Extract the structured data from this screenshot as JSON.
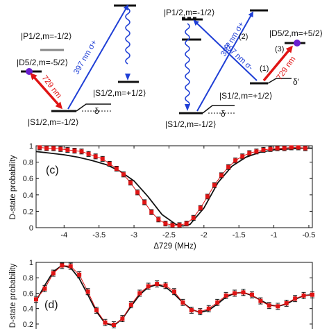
{
  "levels": {
    "p_left": "|P1/2,m=-1/2⟩",
    "d_left": "|D5/2,m=-5/2⟩",
    "s_left_bottom": "|S1/2,m=-1/2⟩",
    "s_left_right": "|S1/2,m=+1/2⟩",
    "p_right": "|P1/2,m=-1/2⟩",
    "d_right": "|D5/2,m=+5/2⟩",
    "s_right_mid": "|S1/2,m=+1/2⟩",
    "s_right_bottom": "|S1/2,m=-1/2⟩"
  },
  "transitions": {
    "uv_left": "397 nm σ+",
    "ir_left": "729 nm",
    "uv_right_1": "397 nm σ+",
    "uv_right_2": "397 nm σ-",
    "ir_right": "729 nm",
    "step1": "(1)",
    "step2": "(2)",
    "step3": "(3)",
    "delta": "δ",
    "delta_prime": "δ'"
  },
  "colors": {
    "uv": "#1f3fd6",
    "ir": "#e01414",
    "marker": "#e01414",
    "dot": "#6a1fd0"
  },
  "chart_data": [
    {
      "type": "scatter",
      "panel": "(c)",
      "title": "",
      "xlabel": "Δ729 (MHz)",
      "ylabel": "D-state probability",
      "xlim": [
        -4.4,
        -0.45
      ],
      "ylim": [
        0,
        1
      ],
      "xticks": [
        -4,
        -3.5,
        -3,
        -2.5,
        -2,
        -1.5,
        -1,
        -0.5
      ],
      "xtick_labels": [
        "-4",
        "-3.5",
        "-3",
        "-2.5",
        "-2",
        "-1.5",
        "-1",
        "-0.5"
      ],
      "yticks": [
        0,
        0.2,
        0.4,
        0.6,
        0.8,
        1
      ],
      "ytick_labels": [
        "0",
        "0.2",
        "0.4",
        "0.6",
        "0.8",
        "1"
      ],
      "x": [
        -4.35,
        -4.25,
        -4.15,
        -4.05,
        -3.95,
        -3.85,
        -3.75,
        -3.65,
        -3.55,
        -3.45,
        -3.35,
        -3.25,
        -3.15,
        -3.05,
        -2.95,
        -2.85,
        -2.75,
        -2.65,
        -2.55,
        -2.45,
        -2.35,
        -2.25,
        -2.15,
        -2.05,
        -1.95,
        -1.85,
        -1.75,
        -1.65,
        -1.55,
        -1.45,
        -1.35,
        -1.25,
        -1.15,
        -1.05,
        -0.95,
        -0.85,
        -0.75,
        -0.65,
        -0.55
      ],
      "y": [
        0.98,
        0.97,
        0.97,
        0.96,
        0.95,
        0.94,
        0.93,
        0.9,
        0.87,
        0.84,
        0.78,
        0.72,
        0.65,
        0.55,
        0.43,
        0.31,
        0.19,
        0.1,
        0.05,
        0.03,
        0.03,
        0.05,
        0.12,
        0.24,
        0.38,
        0.52,
        0.64,
        0.74,
        0.82,
        0.87,
        0.91,
        0.93,
        0.95,
        0.96,
        0.97,
        0.97,
        0.98,
        0.98,
        0.97
      ],
      "error": 0.03,
      "fit": {
        "x": [
          -4.4,
          -4.2,
          -4.0,
          -3.8,
          -3.6,
          -3.4,
          -3.2,
          -3.0,
          -2.8,
          -2.6,
          -2.4,
          -2.3,
          -2.2,
          -2.0,
          -1.8,
          -1.6,
          -1.4,
          -1.2,
          -1.0,
          -0.8,
          -0.6,
          -0.45
        ],
        "y": [
          0.93,
          0.91,
          0.89,
          0.86,
          0.82,
          0.77,
          0.69,
          0.57,
          0.38,
          0.16,
          0.04,
          0.02,
          0.04,
          0.24,
          0.55,
          0.75,
          0.86,
          0.92,
          0.95,
          0.96,
          0.97,
          0.97
        ]
      }
    },
    {
      "type": "scatter",
      "panel": "(d)",
      "title": "",
      "xlabel": "",
      "ylabel": "D-state probability",
      "xlim": [
        0,
        16
      ],
      "ylim": [
        0.1,
        1
      ],
      "yticks": [
        0.2,
        0.4,
        0.6,
        0.8,
        1
      ],
      "ytick_labels": [
        "0.2",
        "0.4",
        "0.6",
        "0.8",
        "1"
      ],
      "x": [
        0,
        0.5,
        1,
        1.5,
        2,
        2.5,
        3,
        3.5,
        4,
        4.5,
        5,
        5.5,
        6,
        6.5,
        7,
        7.5,
        8,
        8.5,
        9,
        9.5,
        10,
        10.5,
        11,
        11.5,
        12,
        12.5,
        13,
        13.5,
        14,
        14.5,
        15,
        15.5,
        16
      ],
      "y": [
        0.52,
        0.66,
        0.86,
        0.96,
        0.95,
        0.84,
        0.62,
        0.38,
        0.22,
        0.19,
        0.27,
        0.45,
        0.6,
        0.69,
        0.72,
        0.7,
        0.62,
        0.48,
        0.38,
        0.36,
        0.4,
        0.48,
        0.57,
        0.6,
        0.61,
        0.58,
        0.5,
        0.44,
        0.43,
        0.47,
        0.53,
        0.57,
        0.58
      ],
      "error": 0.04,
      "fit": {
        "x": [
          0,
          0.5,
          1,
          1.5,
          2,
          2.5,
          3,
          3.5,
          4,
          4.5,
          5,
          5.5,
          6,
          6.5,
          7,
          7.5,
          8,
          8.5,
          9,
          9.5,
          10,
          10.5,
          11,
          11.5,
          12,
          12.5,
          13,
          13.5,
          14,
          14.5,
          15,
          15.5,
          16
        ],
        "y": [
          0.5,
          0.7,
          0.88,
          0.96,
          0.93,
          0.79,
          0.58,
          0.36,
          0.21,
          0.18,
          0.27,
          0.43,
          0.58,
          0.68,
          0.71,
          0.68,
          0.59,
          0.48,
          0.39,
          0.35,
          0.38,
          0.46,
          0.55,
          0.6,
          0.61,
          0.57,
          0.51,
          0.45,
          0.43,
          0.46,
          0.52,
          0.57,
          0.58
        ]
      }
    }
  ]
}
